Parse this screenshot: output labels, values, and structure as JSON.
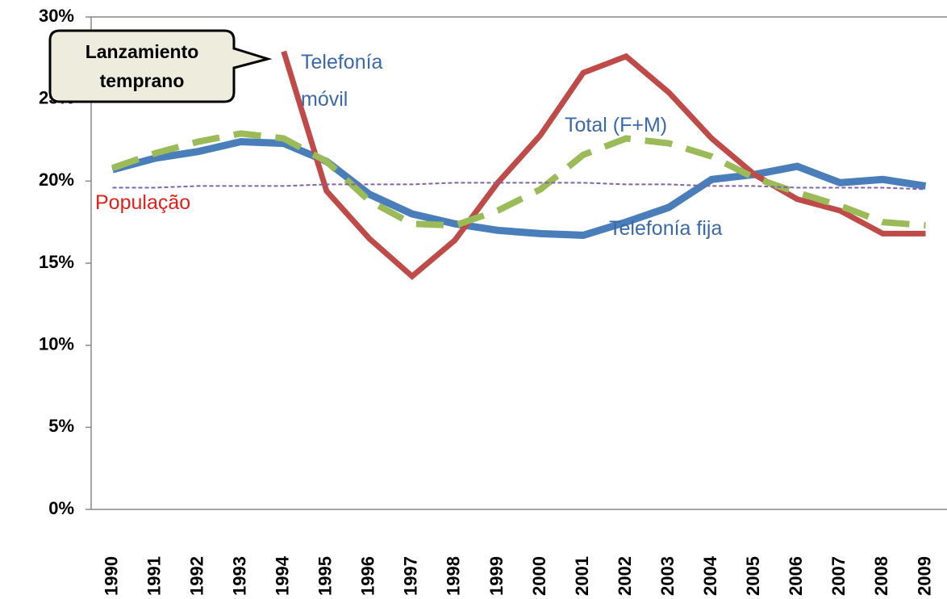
{
  "chart_data": {
    "type": "line",
    "categories": [
      "1990",
      "1991",
      "1992",
      "1993",
      "1994",
      "1995",
      "1996",
      "1997",
      "1998",
      "1999",
      "2000",
      "2001",
      "2002",
      "2003",
      "2004",
      "2005",
      "2006",
      "2007",
      "2008",
      "2009"
    ],
    "series": [
      {
        "name": "Telefonía fija",
        "color": "#4a7ebb",
        "width": 9,
        "dash": "none",
        "values": [
          20.7,
          21.4,
          21.8,
          22.4,
          22.3,
          21.2,
          19.2,
          18.0,
          17.4,
          17.0,
          16.8,
          16.7,
          17.5,
          18.4,
          20.1,
          20.4,
          20.9,
          19.9,
          20.1,
          19.7
        ]
      },
      {
        "name": "Telefonía móvil",
        "color": "#be4b48",
        "width": 7,
        "dash": "none",
        "values": [
          null,
          null,
          null,
          null,
          27.9,
          19.4,
          16.5,
          14.2,
          16.4,
          19.9,
          22.8,
          26.6,
          27.6,
          25.4,
          22.6,
          20.4,
          18.9,
          18.2,
          16.8,
          16.8
        ]
      },
      {
        "name": "Total (F+M)",
        "color": "#9bbb59",
        "width": 8,
        "dash": "34 18",
        "values": [
          20.8,
          21.7,
          22.4,
          22.9,
          22.6,
          21.2,
          18.8,
          17.4,
          17.3,
          18.2,
          19.5,
          21.6,
          22.6,
          22.3,
          21.5,
          20.2,
          19.3,
          18.5,
          17.5,
          17.3
        ]
      },
      {
        "name": "População",
        "color": "#7f62a8",
        "width": 2,
        "dash": "5 3",
        "values": [
          19.6,
          19.6,
          19.7,
          19.7,
          19.7,
          19.8,
          19.8,
          19.8,
          19.9,
          19.9,
          19.9,
          19.9,
          19.8,
          19.8,
          19.7,
          19.7,
          19.6,
          19.6,
          19.6,
          19.5
        ]
      }
    ],
    "annotation": "Lanzamiento temprano",
    "ylim": [
      0,
      30
    ],
    "yticks": [
      {
        "value": 0,
        "label": "0%"
      },
      {
        "value": 5,
        "label": "5%"
      },
      {
        "value": 10,
        "label": "10%"
      },
      {
        "value": 15,
        "label": "15%"
      },
      {
        "value": 20,
        "label": "20%"
      },
      {
        "value": 25,
        "label": "25%"
      },
      {
        "value": 30,
        "label": "30%"
      }
    ]
  }
}
